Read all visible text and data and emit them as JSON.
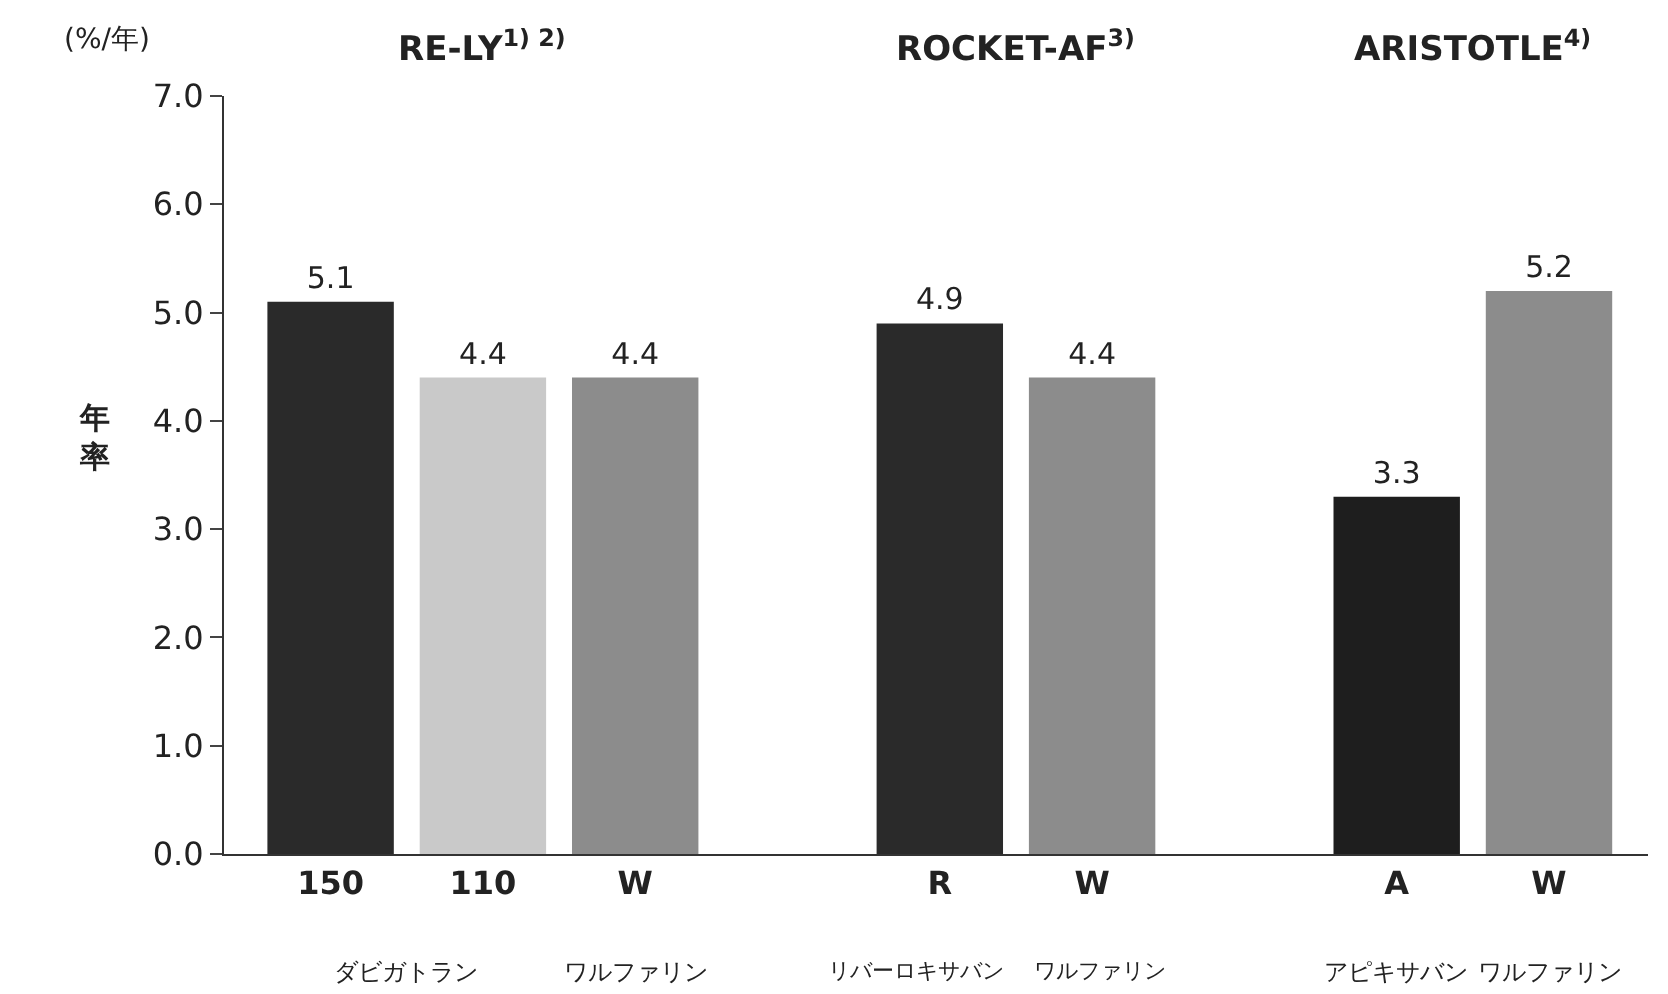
{
  "chart_data": {
    "type": "bar",
    "ylabel": "年率",
    "categories": [
      "150",
      "110",
      "W",
      null,
      "R",
      "W",
      null,
      "A",
      "W"
    ],
    "values": [
      5.1,
      4.4,
      4.4,
      null,
      4.9,
      4.4,
      null,
      3.3,
      5.2
    ],
    "colors": [
      "#2a2a2a",
      "#c9c9c9",
      "#8c8c8c",
      "#ffffff",
      "#2a2a2a",
      "#8c8c8c",
      "#ffffff",
      "#1e1e1e",
      "#8c8c8c"
    ],
    "ylim": [
      0,
      7
    ],
    "yticks": [
      {
        "value": 0,
        "label": "0.0"
      },
      {
        "value": 1,
        "label": "1.0"
      },
      {
        "value": 2,
        "label": "2.0"
      },
      {
        "value": 3,
        "label": "3.0"
      },
      {
        "value": 4,
        "label": "4.0"
      },
      {
        "value": 5,
        "label": "5.0"
      },
      {
        "value": 6,
        "label": "6.0"
      },
      {
        "value": 7,
        "label": "7.0"
      }
    ],
    "grid": false,
    "data_labels": true,
    "annotations": [
      "(%/年)",
      "RE-LY$^{1) 2)}$",
      "ROCKET-AF$^{3)}$",
      "ARISTOTLE$^{4)}$",
      "ダビガトラン",
      "ワルファリン",
      "リバーロキサバン",
      "ワルファリン",
      "アピキサバン",
      "ワルファリン"
    ]
  }
}
